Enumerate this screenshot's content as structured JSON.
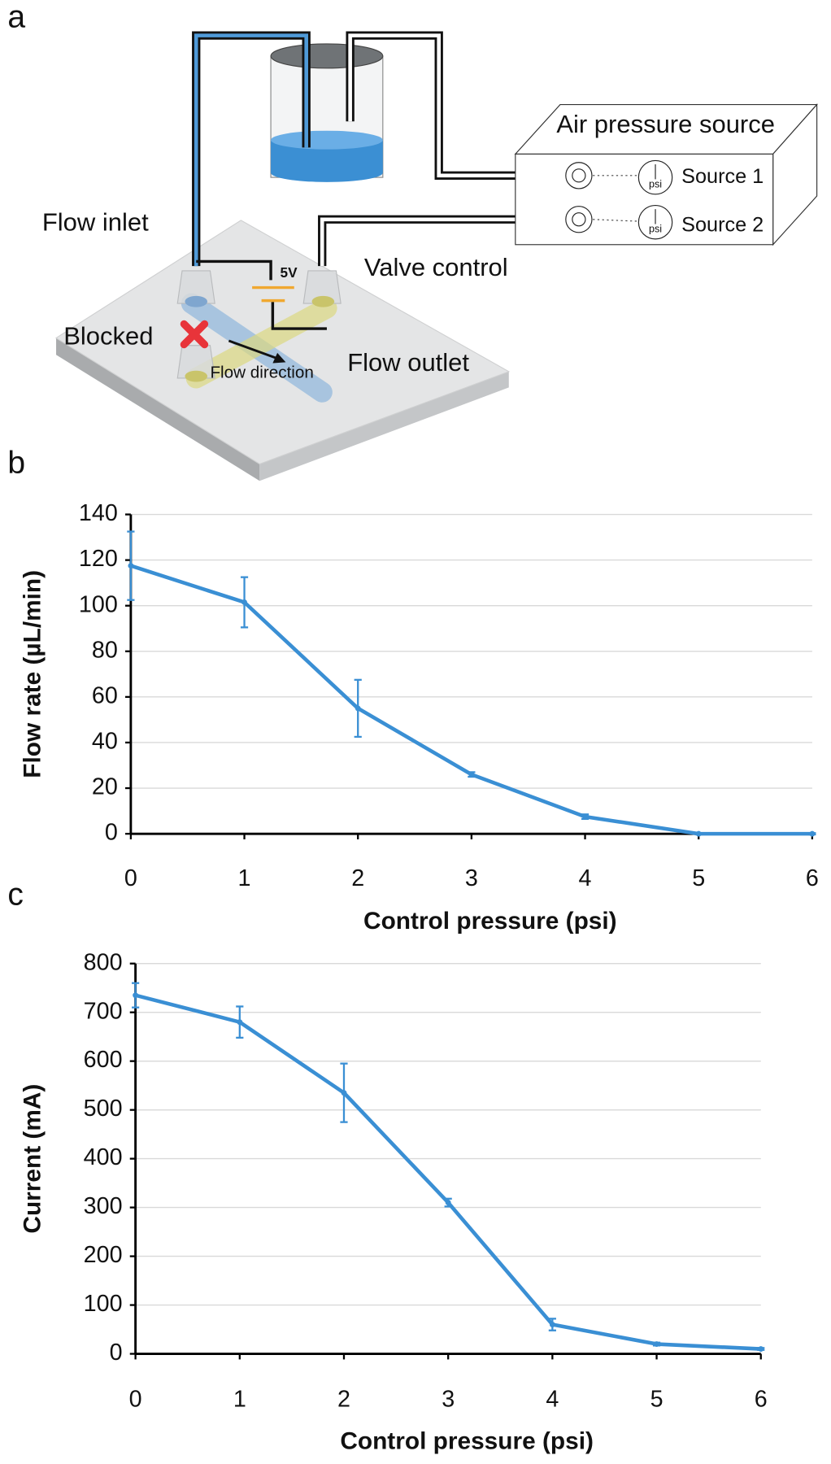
{
  "panels": [
    "a",
    "b",
    "c"
  ],
  "diagram": {
    "labels": [
      "Air pressure source",
      "Source 1",
      "Source 2",
      "psi",
      "psi",
      "Flow inlet",
      "Valve control",
      "5V",
      "Blocked",
      "Flow outlet",
      "Flow direction"
    ]
  },
  "chart_data": [
    {
      "type": "line",
      "x_label": "Control pressure (psi)",
      "y_label": "Flow rate (µL/min)",
      "x": [
        0,
        1,
        2,
        3,
        4,
        5,
        6
      ],
      "series": [
        {
          "color": "#3a8fd4",
          "values": [
            117.5,
            101.5,
            55,
            26,
            7.5,
            0,
            0
          ],
          "errors": [
            15,
            11,
            12.5,
            1,
            1,
            0.3,
            0.3
          ]
        }
      ],
      "xlim": [
        0,
        6
      ],
      "xticks": [
        0,
        1,
        2,
        3,
        4,
        5,
        6
      ],
      "ylim": [
        0,
        140
      ],
      "yticks": [
        0,
        20,
        40,
        60,
        80,
        100,
        120,
        140
      ],
      "grid": true
    },
    {
      "type": "line",
      "x_label": "Control pressure (psi)",
      "y_label": "Current (mA)",
      "x": [
        0,
        1,
        2,
        3,
        4,
        5,
        6
      ],
      "series": [
        {
          "color": "#3a8fd4",
          "values": [
            735,
            680,
            535,
            310,
            60,
            20,
            10
          ],
          "errors": [
            25,
            32,
            60,
            8,
            12,
            3,
            2
          ]
        }
      ],
      "xlim": [
        0,
        6
      ],
      "xticks": [
        0,
        1,
        2,
        3,
        4,
        5,
        6
      ],
      "ylim": [
        0,
        800
      ],
      "yticks": [
        0,
        100,
        200,
        300,
        400,
        500,
        600,
        700,
        800
      ],
      "grid": true
    }
  ]
}
